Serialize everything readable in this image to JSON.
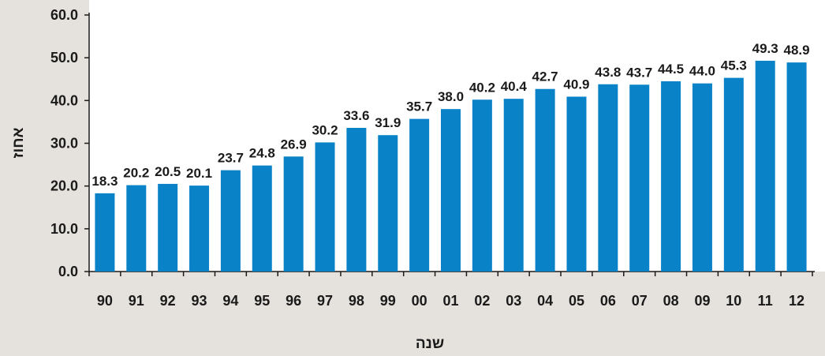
{
  "chart_data": {
    "type": "bar",
    "categories": [
      "90",
      "91",
      "92",
      "93",
      "94",
      "95",
      "96",
      "97",
      "98",
      "99",
      "00",
      "01",
      "02",
      "03",
      "04",
      "05",
      "06",
      "07",
      "08",
      "09",
      "10",
      "11",
      "12"
    ],
    "values": [
      18.3,
      20.2,
      20.5,
      20.1,
      23.7,
      24.8,
      26.9,
      30.2,
      33.6,
      31.9,
      35.7,
      38.0,
      40.2,
      40.4,
      42.7,
      40.9,
      43.8,
      43.7,
      44.5,
      44.0,
      45.3,
      49.3,
      48.9
    ],
    "value_labels": [
      "18.3",
      "20.2",
      "20.5",
      "20.1",
      "23.7",
      "24.8",
      "26.9",
      "30.2",
      "33.6",
      "31.9",
      "35.7",
      "38.0",
      "40.2",
      "40.4",
      "42.7",
      "40.9",
      "43.8",
      "43.7",
      "44.5",
      "44.0",
      "45.3",
      "49.3",
      "48.9"
    ],
    "xlabel": "שנה",
    "ylabel": "אחוז",
    "ylim": [
      0,
      60
    ],
    "yticks": [
      "0.0",
      "10.0",
      "20.0",
      "30.0",
      "40.0",
      "50.0",
      "60.0"
    ],
    "grid": false,
    "bar_color": "#0a82c8",
    "plot_background": "#ffffff",
    "page_background": "#e5e1dc"
  }
}
